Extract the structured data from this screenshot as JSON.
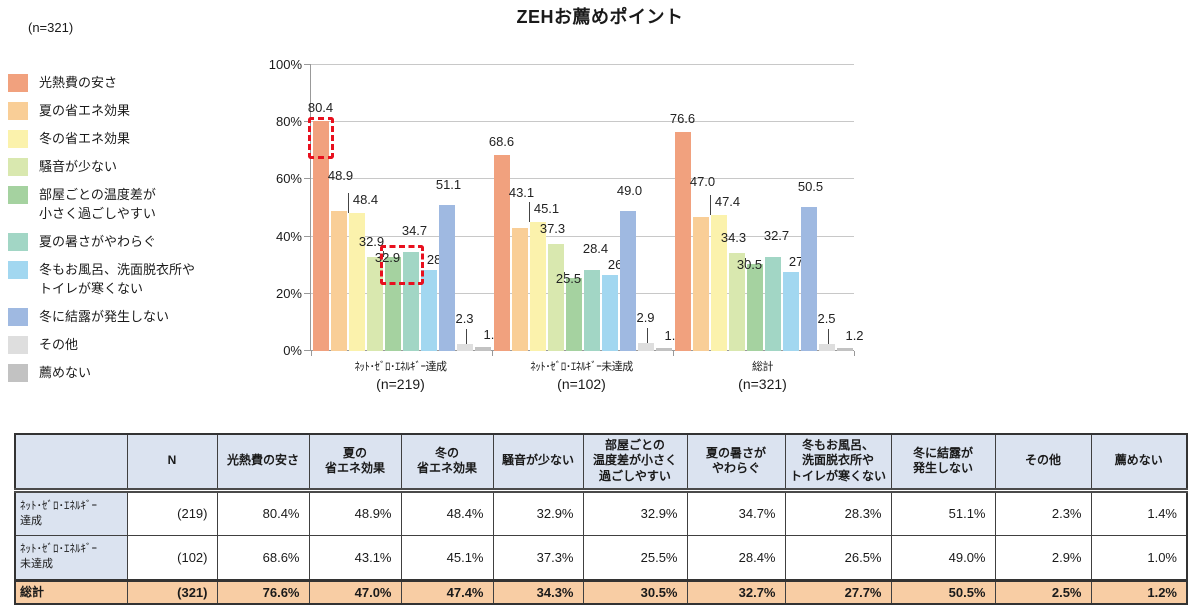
{
  "title": "ZEHお薦めポイント",
  "sample_note": "(n=321)",
  "legend": {
    "position": "left",
    "items": [
      {
        "label": "光熱費の安さ",
        "color": "#F1A17E"
      },
      {
        "label": "夏の省エネ効果",
        "color": "#F9CE97"
      },
      {
        "label": "冬の省エネ効果",
        "color": "#FBF2AC"
      },
      {
        "label": "騒音が少ない",
        "color": "#D9E8AF"
      },
      {
        "label": "部屋ごとの温度差が\n小さく過ごしやすい",
        "color": "#A5D2A0"
      },
      {
        "label": "夏の暑さがやわらぐ",
        "color": "#A2D6C5"
      },
      {
        "label": "冬もお風呂、洗面脱衣所や\nトイレが寒くない",
        "color": "#A2D7F0"
      },
      {
        "label": "冬に結露が発生しない",
        "color": "#9FB9E1"
      },
      {
        "label": "その他",
        "color": "#DEDEDE"
      },
      {
        "label": "薦めない",
        "color": "#C2C2C2"
      }
    ]
  },
  "chart_data": {
    "type": "bar",
    "title": "ZEHお薦めポイント",
    "ylim": [
      0,
      100
    ],
    "yticks": [
      "0%",
      "20%",
      "40%",
      "60%",
      "80%",
      "100%"
    ],
    "grid": true,
    "legend_position": "left",
    "categories": [
      "ﾈｯﾄ･ｾﾞﾛ･ｴﾈﾙｷﾞｰ達成",
      "ﾈｯﾄ･ｾﾞﾛ･ｴﾈﾙｷﾞｰ未達成",
      "総計"
    ],
    "group_n_labels": [
      "(n=219)",
      "(n=102)",
      "(n=321)"
    ],
    "series": [
      {
        "name": "光熱費の安さ",
        "color": "#F1A17E",
        "values": [
          80.4,
          68.6,
          76.6
        ]
      },
      {
        "name": "夏の省エネ効果",
        "color": "#F9CE97",
        "values": [
          48.9,
          43.1,
          47.0
        ]
      },
      {
        "name": "冬の省エネ効果",
        "color": "#FBF2AC",
        "values": [
          48.4,
          45.1,
          47.4
        ]
      },
      {
        "name": "騒音が少ない",
        "color": "#D9E8AF",
        "values": [
          32.9,
          37.3,
          34.3
        ]
      },
      {
        "name": "部屋ごとの温度差が小さく過ごしやすい",
        "color": "#A5D2A0",
        "values": [
          32.9,
          25.5,
          30.5
        ]
      },
      {
        "name": "夏の暑さがやわらぐ",
        "color": "#A2D6C5",
        "values": [
          34.7,
          28.4,
          32.7
        ]
      },
      {
        "name": "冬もお風呂、洗面脱衣所やトイレが寒くない",
        "color": "#A2D7F0",
        "values": [
          28.3,
          26.5,
          27.7
        ]
      },
      {
        "name": "冬に結露が発生しない",
        "color": "#9FB9E1",
        "values": [
          51.1,
          49.0,
          50.5
        ]
      },
      {
        "name": "その他",
        "color": "#DEDEDE",
        "values": [
          2.3,
          2.9,
          2.5
        ]
      },
      {
        "name": "薦めない",
        "color": "#C2C2C2",
        "values": [
          1.4,
          1.0,
          1.2
        ]
      }
    ],
    "value_label_format": "0.0",
    "highlights": [
      {
        "group_index": 0,
        "bar_start": 0,
        "bar_end": 0,
        "from_pct": 67,
        "to_pct": 82,
        "color": "#E8101E"
      },
      {
        "group_index": 0,
        "bar_start": 4,
        "bar_end": 5,
        "from_pct": 23,
        "to_pct": 37,
        "color": "#E8101E"
      }
    ]
  },
  "table": {
    "headers": [
      "",
      "N",
      "光熱費の安さ",
      "夏の\n省エネ効果",
      "冬の\n省エネ効果",
      "騒音が少ない",
      "部屋ごとの\n温度差が小さく\n過ごしやすい",
      "夏の暑さが\nやわらぐ",
      "冬もお風呂、\n洗面脱衣所や\nトイレが寒くない",
      "冬に結露が\n発生しない",
      "その他",
      "薦めない"
    ],
    "rows": [
      {
        "label": "ﾈｯﾄ･ｾﾞﾛ･ｴﾈﾙｷﾞｰ\n達成",
        "n": "(219)",
        "values": [
          "80.4%",
          "48.9%",
          "48.4%",
          "32.9%",
          "32.9%",
          "34.7%",
          "28.3%",
          "51.1%",
          "2.3%",
          "1.4%"
        ]
      },
      {
        "label": "ﾈｯﾄ･ｾﾞﾛ･ｴﾈﾙｷﾞｰ\n未達成",
        "n": "(102)",
        "values": [
          "68.6%",
          "43.1%",
          "45.1%",
          "37.3%",
          "25.5%",
          "28.4%",
          "26.5%",
          "49.0%",
          "2.9%",
          "1.0%"
        ]
      }
    ],
    "total_row": {
      "label": "総計",
      "n": "(321)",
      "values": [
        "76.6%",
        "47.0%",
        "47.4%",
        "34.3%",
        "30.5%",
        "32.7%",
        "27.7%",
        "50.5%",
        "2.5%",
        "1.2%"
      ]
    }
  }
}
